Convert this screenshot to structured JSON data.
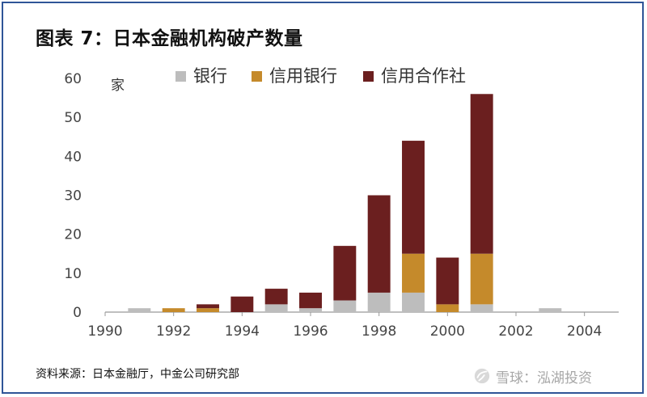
{
  "header": {
    "title": "图表 7：日本金融机构破产数量"
  },
  "footer": {
    "source": "资料来源：日本金融厅，中金公司研究部",
    "watermark_text": "雪球：泓湖投资",
    "watermark_icon": "snowball-logo-icon"
  },
  "chart_data": {
    "type": "bar",
    "stacked": true,
    "categories": [
      "1991",
      "1992",
      "1993",
      "1994",
      "1995",
      "1996",
      "1997",
      "1998",
      "1999",
      "2000",
      "2001",
      "2002",
      "2003",
      "2004"
    ],
    "series": [
      {
        "name": "银行",
        "color": "#bdbdbd",
        "values": [
          1,
          0,
          0,
          0,
          2,
          1,
          3,
          5,
          5,
          0,
          2,
          0,
          1,
          0
        ]
      },
      {
        "name": "信用银行",
        "color": "#c58a2b",
        "values": [
          0,
          1,
          1,
          0,
          0,
          0,
          0,
          0,
          10,
          2,
          13,
          0,
          0,
          0
        ]
      },
      {
        "name": "信用合作社",
        "color": "#6b1f1f",
        "values": [
          0,
          0,
          1,
          4,
          4,
          4,
          14,
          25,
          29,
          12,
          41,
          0,
          0,
          0
        ]
      }
    ],
    "xlim": [
      1990,
      2005
    ],
    "x_ticks": [
      "1990",
      "1992",
      "1994",
      "1996",
      "1998",
      "2000",
      "2002",
      "2004"
    ],
    "ylim": [
      0,
      60
    ],
    "y_ticks": [
      "0",
      "10",
      "20",
      "30",
      "40",
      "50",
      "60"
    ],
    "ylabel": "家",
    "xlabel": "",
    "legend_position": "top",
    "grid": false
  }
}
